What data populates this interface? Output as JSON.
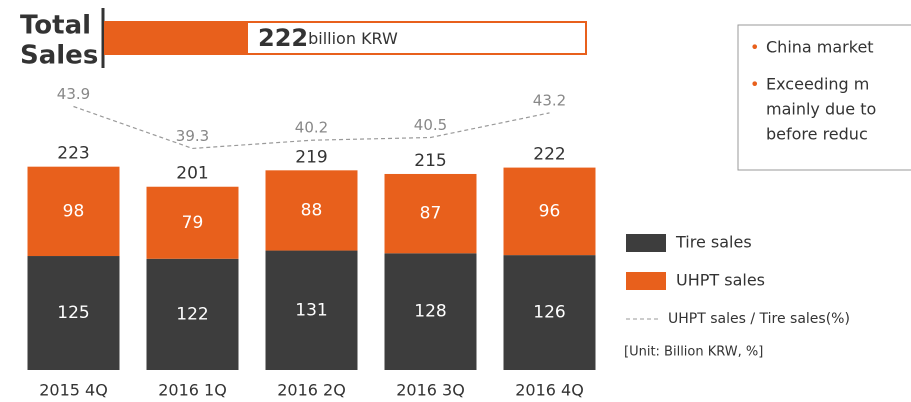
{
  "headline": {
    "label_lines": [
      "Total",
      "Sales"
    ],
    "value": "222",
    "unit": "billion KRW"
  },
  "notes": [
    [
      "China market"
    ],
    [
      "Exceeding m",
      "mainly due to",
      "before reduc"
    ]
  ],
  "chart_data": {
    "type": "bar",
    "stacked": true,
    "categories": [
      "2015 4Q",
      "2016 1Q",
      "2016 2Q",
      "2016 3Q",
      "2016 4Q"
    ],
    "series": [
      {
        "name": "Tire sales",
        "color": "#3d3d3d",
        "values": [
          125,
          122,
          131,
          128,
          126
        ]
      },
      {
        "name": "UHPT sales",
        "color": "#e8601c",
        "values": [
          98,
          79,
          88,
          87,
          96
        ]
      },
      {
        "name": "UHPT sales / Tire sales(%)",
        "type": "line",
        "axis": "y2",
        "dashed": true,
        "color": "#9a9a9a",
        "values": [
          43.9,
          39.3,
          40.2,
          40.5,
          43.2
        ]
      }
    ],
    "totals": [
      223,
      201,
      219,
      215,
      222
    ],
    "unit_note": "[Unit: Billion KRW, %]",
    "ylim": [
      0,
      340
    ],
    "y2lim": [
      15,
      49
    ]
  }
}
